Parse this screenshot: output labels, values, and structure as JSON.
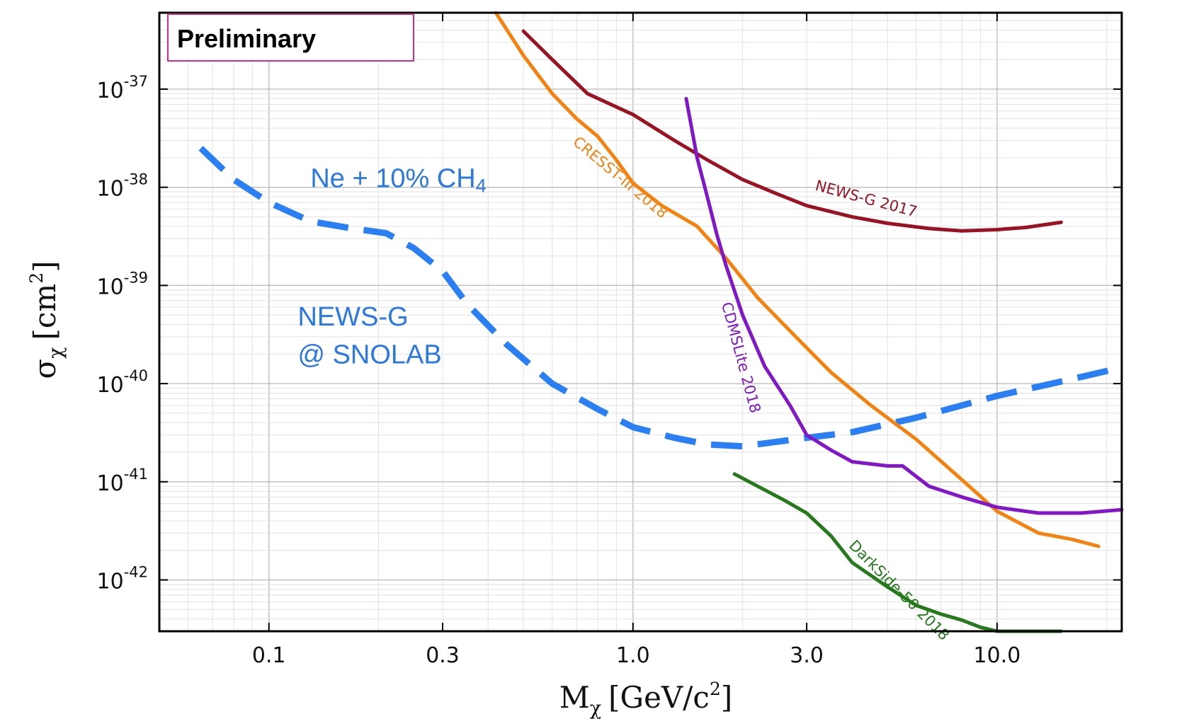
{
  "chart_data": {
    "type": "line",
    "title": "",
    "badge": "Preliminary",
    "xlabel": {
      "main": "M",
      "sub": "χ",
      "unit_open": "[GeV/c",
      "sup": "2",
      "unit_close": "]"
    },
    "ylabel": {
      "main": "σ",
      "sub": "χ",
      "unit_open": "[cm",
      "sup": "2",
      "unit_close": "]"
    },
    "x_scale": "log",
    "y_scale": "log",
    "xlim": [
      0.05,
      22
    ],
    "ylim": [
      3e-43,
      6e-37
    ],
    "grid": true,
    "x_ticks": [
      0.1,
      0.3,
      1.0,
      3.0,
      10.0
    ],
    "x_tick_labels": [
      "0.1",
      "0.3",
      "1.0",
      "3.0",
      "10.0"
    ],
    "y_ticks": [
      {
        "value": 1e-37,
        "base": "10",
        "exp": "-37"
      },
      {
        "value": 1e-38,
        "base": "10",
        "exp": "-38"
      },
      {
        "value": 1e-39,
        "base": "10",
        "exp": "-39"
      },
      {
        "value": 1e-40,
        "base": "10",
        "exp": "-40"
      },
      {
        "value": 1e-41,
        "base": "10",
        "exp": "-41"
      },
      {
        "value": 1e-42,
        "base": "10",
        "exp": "-42"
      }
    ],
    "annotations": {
      "gas": {
        "main": "Ne + 10% CH",
        "sub": "4",
        "color": "#2a78e8",
        "x": 0.13,
        "y": 1e-38
      },
      "experiment_line1": {
        "text": "NEWS-G",
        "color": "#2a78e8",
        "x": 0.12,
        "y": 3.9e-40
      },
      "experiment_line2": {
        "text": "@ SNOLAB",
        "color": "#2a78e8",
        "x": 0.12,
        "y": 1.6e-40
      }
    },
    "series": [
      {
        "name": "NEWS-G @ SNOLAB (Ne + 10% CH4)",
        "label": "",
        "color": "#2a7ff5",
        "style": "dashed",
        "width": 9,
        "points": [
          [
            0.065,
            2.5e-38
          ],
          [
            0.08,
            1.2e-38
          ],
          [
            0.1,
            7e-39
          ],
          [
            0.13,
            4.5e-39
          ],
          [
            0.17,
            3.8e-39
          ],
          [
            0.21,
            3.4e-39
          ],
          [
            0.25,
            2.4e-39
          ],
          [
            0.3,
            1.4e-39
          ],
          [
            0.35,
            6.5e-40
          ],
          [
            0.45,
            2.5e-40
          ],
          [
            0.6,
            1e-40
          ],
          [
            0.8,
            5.5e-41
          ],
          [
            1.0,
            3.6e-41
          ],
          [
            1.3,
            2.8e-41
          ],
          [
            1.6,
            2.4e-41
          ],
          [
            2.0,
            2.3e-41
          ],
          [
            3.0,
            2.8e-41
          ],
          [
            4.0,
            3.2e-41
          ],
          [
            6.0,
            4.5e-41
          ],
          [
            10.0,
            7.5e-41
          ],
          [
            15.0,
            1.05e-40
          ],
          [
            21.0,
            1.4e-40
          ]
        ]
      },
      {
        "name": "CRESST-III 2018",
        "label": "CRESST-III 2018",
        "color": "#f5820f",
        "style": "solid",
        "width": 5,
        "label_pos": {
          "x": 0.68,
          "y": 2.8e-38,
          "angle": 40
        },
        "points": [
          [
            0.42,
            6e-37
          ],
          [
            0.5,
            2.2e-37
          ],
          [
            0.6,
            9e-38
          ],
          [
            0.7,
            5e-38
          ],
          [
            0.8,
            3.3e-38
          ],
          [
            0.9,
            1.9e-38
          ],
          [
            1.0,
            1.1e-38
          ],
          [
            1.2,
            6.5e-39
          ],
          [
            1.5,
            4e-39
          ],
          [
            1.8,
            1.9e-39
          ],
          [
            2.2,
            7.5e-40
          ],
          [
            2.8,
            3e-40
          ],
          [
            3.5,
            1.3e-40
          ],
          [
            4.5,
            6e-41
          ],
          [
            6.0,
            2.7e-41
          ],
          [
            8.0,
            1.05e-41
          ],
          [
            10.0,
            5e-42
          ],
          [
            13.0,
            3e-42
          ],
          [
            16.0,
            2.6e-42
          ],
          [
            19.0,
            2.2e-42
          ]
        ]
      },
      {
        "name": "NEWS-G 2017",
        "label": "NEWS-G 2017",
        "color": "#9b1322",
        "style": "solid",
        "width": 5,
        "label_pos": {
          "x": 3.15,
          "y": 9.4e-39,
          "angle": 15
        },
        "points": [
          [
            0.5,
            3.9e-37
          ],
          [
            0.6,
            2e-37
          ],
          [
            0.75,
            9e-38
          ],
          [
            1.0,
            5.5e-38
          ],
          [
            1.3,
            3e-38
          ],
          [
            1.6,
            1.9e-38
          ],
          [
            2.0,
            1.2e-38
          ],
          [
            2.5,
            8.5e-39
          ],
          [
            3.0,
            6.5e-39
          ],
          [
            4.0,
            5e-39
          ],
          [
            5.0,
            4.3e-39
          ],
          [
            6.5,
            3.8e-39
          ],
          [
            8.0,
            3.6e-39
          ],
          [
            10.0,
            3.7e-39
          ],
          [
            12.0,
            3.9e-39
          ],
          [
            15.0,
            4.4e-39
          ]
        ]
      },
      {
        "name": "CDMSLite 2018",
        "label": "CDMSLite 2018",
        "color": "#8117c8",
        "style": "solid",
        "width": 5,
        "label_pos": {
          "x": 1.75,
          "y": 6.5e-40,
          "angle": 75
        },
        "points": [
          [
            1.4,
            8e-38
          ],
          [
            1.5,
            2e-38
          ],
          [
            1.6,
            8e-39
          ],
          [
            1.7,
            3.3e-39
          ],
          [
            1.8,
            1.6e-39
          ],
          [
            2.0,
            5e-40
          ],
          [
            2.3,
            1.5e-40
          ],
          [
            2.7,
            6e-41
          ],
          [
            3.0,
            3e-41
          ],
          [
            3.5,
            2.1e-41
          ],
          [
            4.0,
            1.6e-41
          ],
          [
            5.0,
            1.45e-41
          ],
          [
            5.5,
            1.45e-41
          ],
          [
            6.5,
            9e-42
          ],
          [
            8.0,
            7e-42
          ],
          [
            10.0,
            5.5e-42
          ],
          [
            13.0,
            4.8e-42
          ],
          [
            17.0,
            4.8e-42
          ],
          [
            22.0,
            5.2e-42
          ]
        ]
      },
      {
        "name": "DarkSide-50 2018",
        "label": "DarkSide-50 2018",
        "color": "#257a1c",
        "style": "solid",
        "width": 5,
        "label_pos": {
          "x": 3.9,
          "y": 2.2e-42,
          "angle": 45
        },
        "points": [
          [
            1.9,
            1.2e-41
          ],
          [
            2.2,
            9e-42
          ],
          [
            2.6,
            6.5e-42
          ],
          [
            3.0,
            4.8e-42
          ],
          [
            3.5,
            2.8e-42
          ],
          [
            4.0,
            1.5e-42
          ],
          [
            5.0,
            8.5e-43
          ],
          [
            6.0,
            5.5e-43
          ],
          [
            7.0,
            4.5e-43
          ],
          [
            8.0,
            3.9e-43
          ],
          [
            9.0,
            3.3e-43
          ],
          [
            10.0,
            3e-43
          ],
          [
            12.0,
            3e-43
          ],
          [
            15.0,
            3e-43
          ]
        ]
      }
    ]
  }
}
